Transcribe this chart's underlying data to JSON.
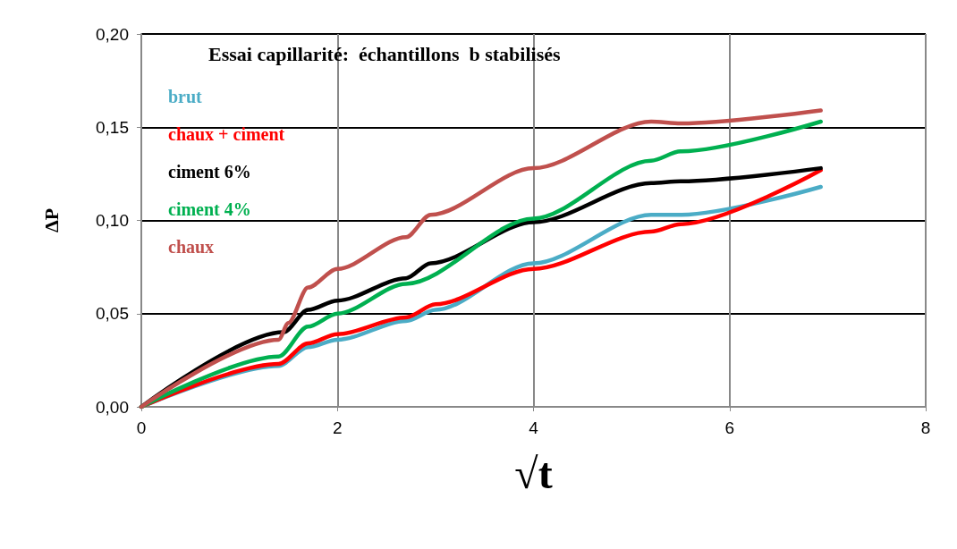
{
  "chart_data": {
    "type": "line",
    "title": "Essai capillarité:  échantillons  b stabilisés",
    "xlabel": "√t",
    "ylabel": "ΔP",
    "xlim": [
      0,
      8
    ],
    "xticks": [
      0,
      2,
      4,
      6,
      8
    ],
    "ylim": [
      0,
      0.2
    ],
    "yticks": [
      {
        "value": 0,
        "label": "0,00"
      },
      {
        "value": 0.05,
        "label": "0,05"
      },
      {
        "value": 0.1,
        "label": "0,10"
      },
      {
        "value": 0.15,
        "label": "0,15"
      },
      {
        "value": 0.2,
        "label": "0,20"
      }
    ],
    "grid": true,
    "legend": "left",
    "marker": "none",
    "line_style": "solid",
    "series": [
      {
        "name": "brut",
        "color": "#4bacc6",
        "x": [
          0,
          1.4,
          1.7,
          2,
          2.7,
          3,
          4,
          5.2,
          5.5,
          6.93
        ],
        "values": [
          0,
          0.022,
          0.032,
          0.036,
          0.046,
          0.052,
          0.077,
          0.103,
          0.103,
          0.118
        ]
      },
      {
        "name": "chaux + ciment",
        "color": "#ff0000",
        "x": [
          0,
          1.4,
          1.7,
          2,
          2.7,
          3,
          4,
          5.2,
          5.5,
          6.93
        ],
        "values": [
          0,
          0.023,
          0.034,
          0.039,
          0.048,
          0.055,
          0.074,
          0.094,
          0.098,
          0.127
        ]
      },
      {
        "name": "ciment 6%",
        "color": "#000000",
        "x": [
          0,
          1.45,
          1.7,
          2,
          2.7,
          2.95,
          4,
          5.2,
          5.5,
          6.93
        ],
        "values": [
          0,
          0.04,
          0.052,
          0.057,
          0.069,
          0.077,
          0.099,
          0.12,
          0.121,
          0.128
        ]
      },
      {
        "name": "ciment 4%",
        "color": "#00b050",
        "x": [
          0,
          1.4,
          1.7,
          2,
          2.7,
          4,
          5.2,
          5.5,
          6.93
        ],
        "values": [
          0,
          0.027,
          0.043,
          0.05,
          0.066,
          0.101,
          0.132,
          0.137,
          0.153
        ]
      },
      {
        "name": "chaux",
        "color": "#c0504d",
        "x": [
          0,
          1.4,
          1.5,
          1.7,
          2,
          2.7,
          2.95,
          4,
          5.2,
          5.5,
          6.93
        ],
        "values": [
          0,
          0.036,
          0.045,
          0.064,
          0.074,
          0.091,
          0.103,
          0.128,
          0.153,
          0.152,
          0.159
        ]
      }
    ]
  }
}
